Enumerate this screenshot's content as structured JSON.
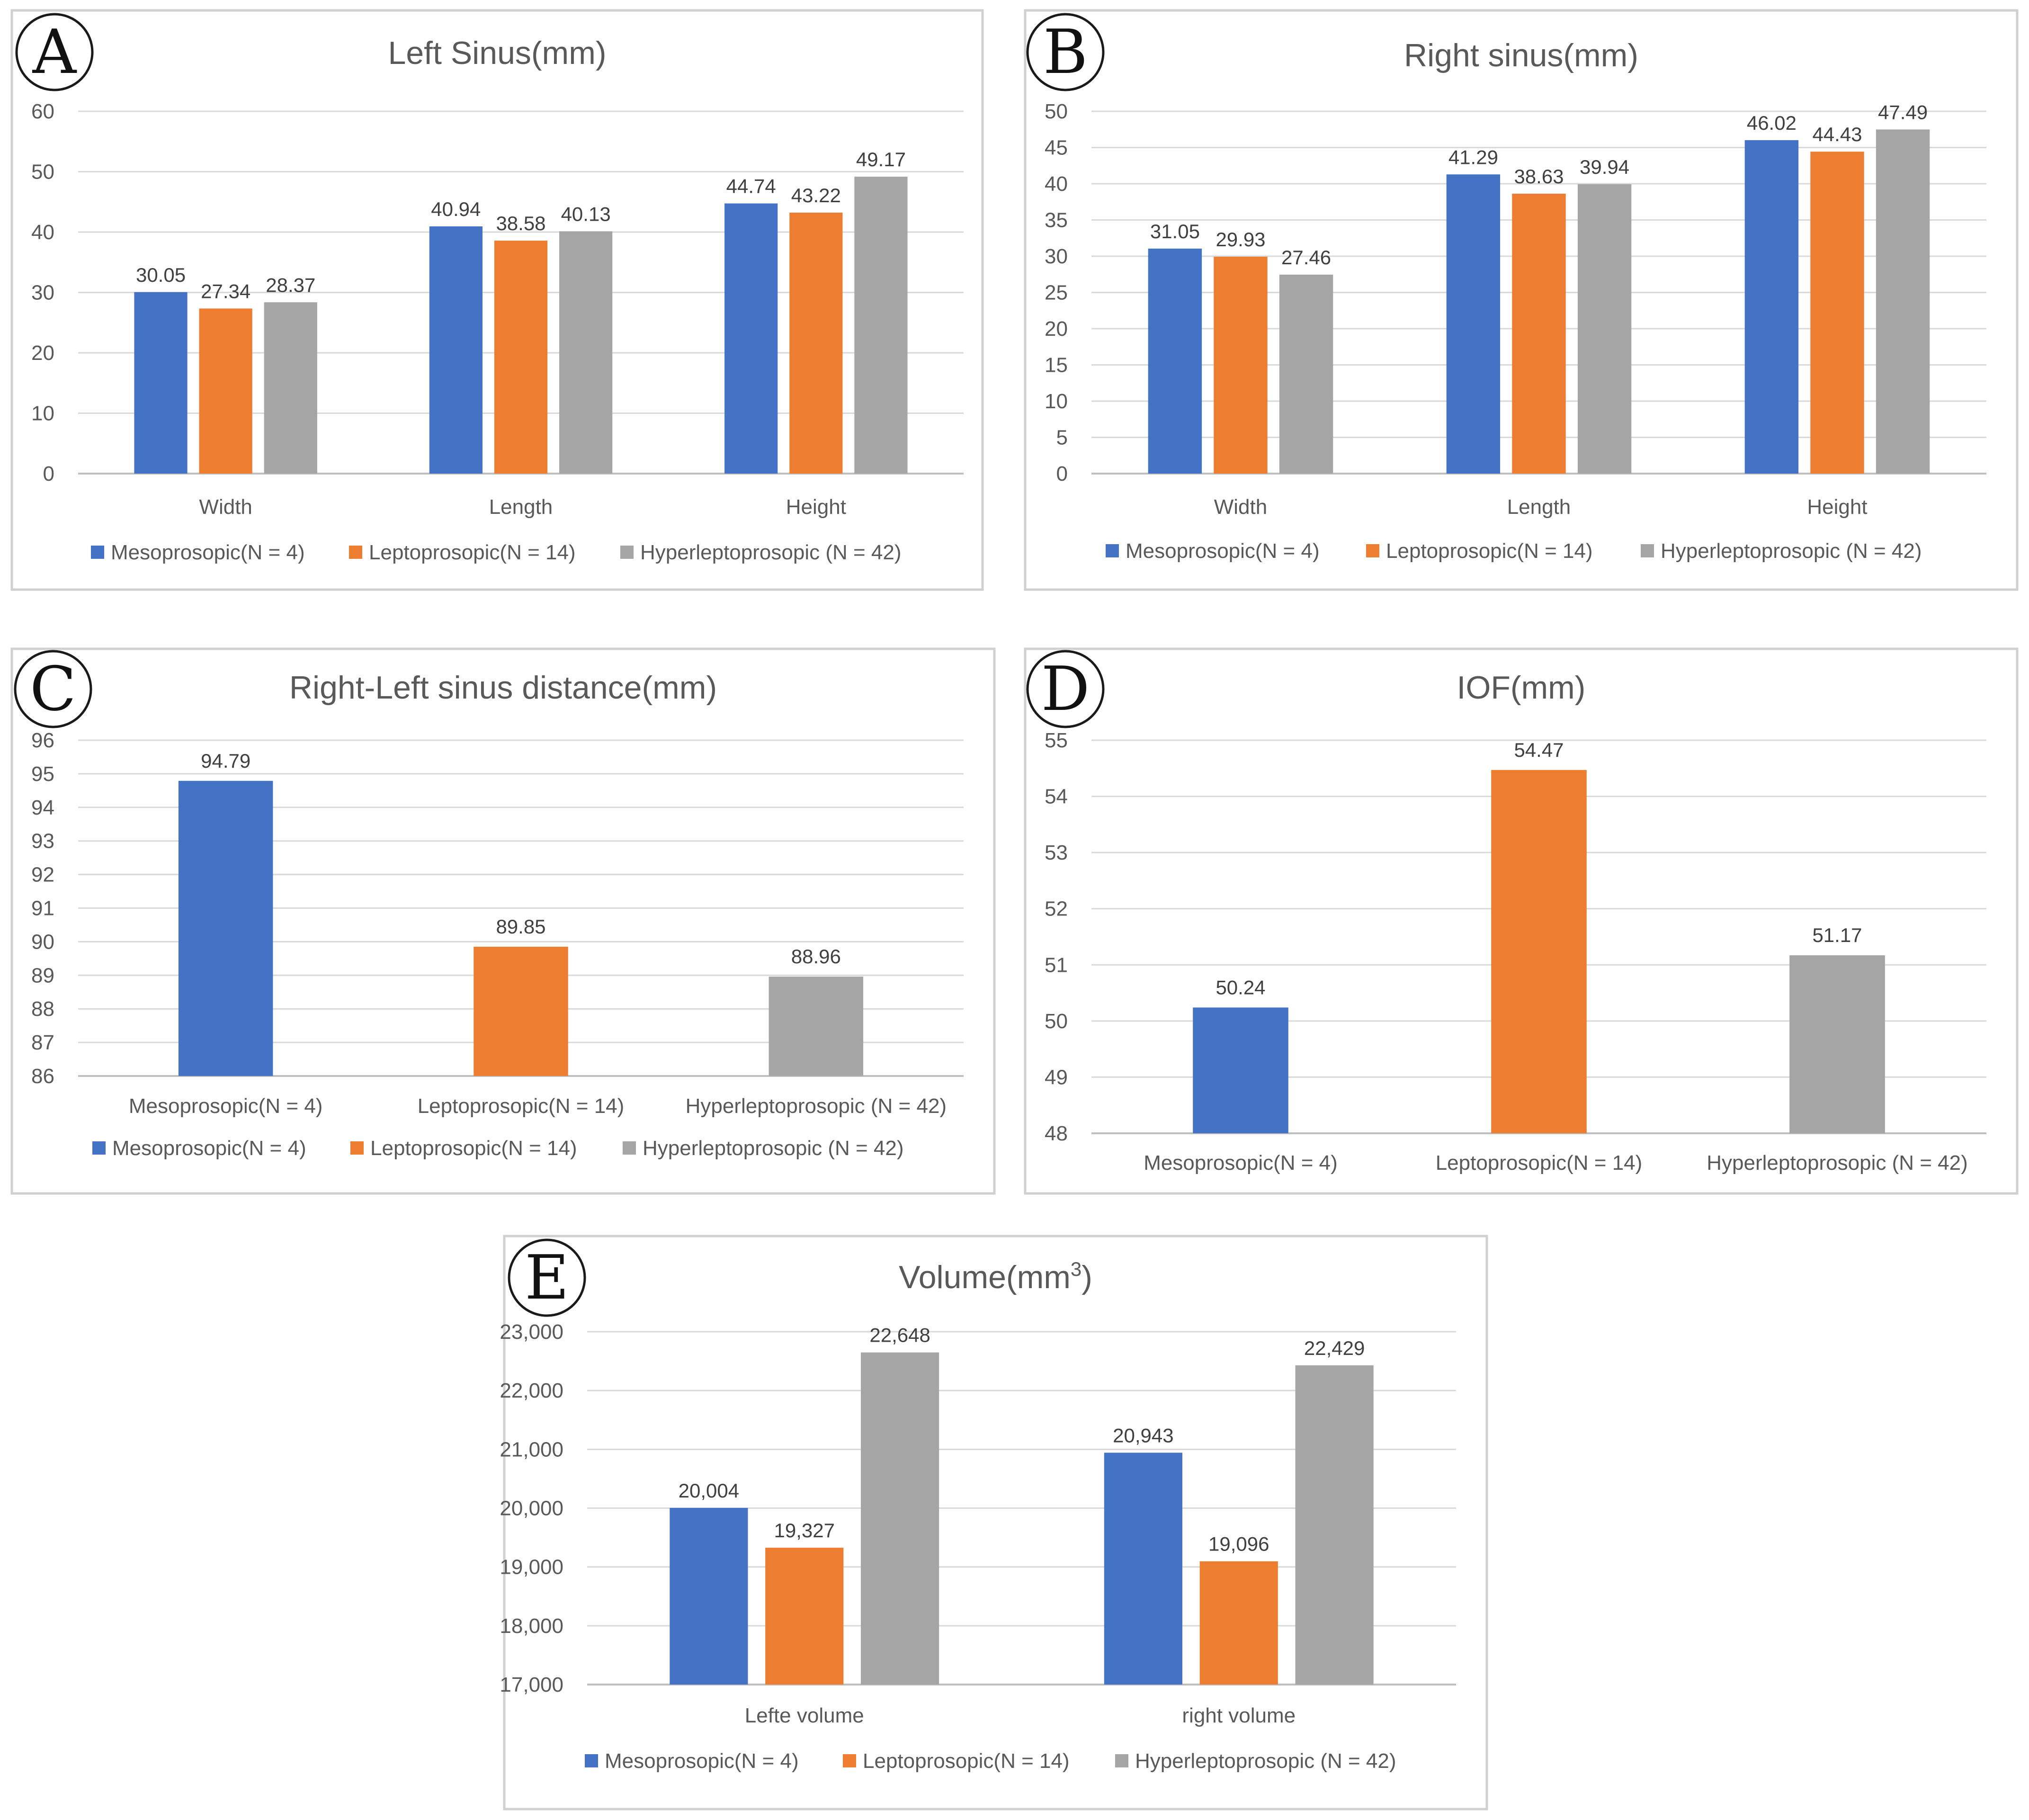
{
  "colors": {
    "series": [
      "#4472C4",
      "#ED7D31",
      "#A5A5A5"
    ]
  },
  "legend": [
    "Mesoprosopic(N = 4)",
    "Leptoprosopic(N = 14)",
    "Hyperleptoprosopic (N = 42)"
  ],
  "chart_data": [
    {
      "panel": "A",
      "type": "bar",
      "title": "Left Sinus(mm)",
      "categories": [
        "Width",
        "Length",
        "Height"
      ],
      "series": [
        {
          "name": "Mesoprosopic(N = 4)",
          "values": [
            30.05,
            40.94,
            44.74
          ],
          "labels": [
            "30.05",
            "40.94",
            "44.74"
          ]
        },
        {
          "name": "Leptoprosopic(N = 14)",
          "values": [
            27.34,
            38.58,
            43.22
          ],
          "labels": [
            "27.34",
            "38.58",
            "43.22"
          ]
        },
        {
          "name": "Hyperleptoprosopic (N = 42)",
          "values": [
            28.37,
            40.13,
            49.17
          ],
          "labels": [
            "28.37",
            "40.13",
            "49.17"
          ]
        }
      ],
      "ylim": [
        0,
        60
      ],
      "yticks": [
        "0",
        "10",
        "20",
        "30",
        "40",
        "50",
        "60"
      ],
      "xlabel": "",
      "ylabel": "",
      "legend_position": "bottom"
    },
    {
      "panel": "B",
      "type": "bar",
      "title": "Right sinus(mm)",
      "categories": [
        "Width",
        "Length",
        "Height"
      ],
      "series": [
        {
          "name": "Mesoprosopic(N = 4)",
          "values": [
            31.05,
            41.29,
            46.02
          ],
          "labels": [
            "31.05",
            "41.29",
            "46.02"
          ]
        },
        {
          "name": "Leptoprosopic(N = 14)",
          "values": [
            29.93,
            38.63,
            44.43
          ],
          "labels": [
            "29.93",
            "38.63",
            "44.43"
          ]
        },
        {
          "name": "Hyperleptoprosopic (N = 42)",
          "values": [
            27.46,
            39.94,
            47.49
          ],
          "labels": [
            "27.46",
            "39.94",
            "47.49"
          ]
        }
      ],
      "ylim": [
        0,
        50
      ],
      "yticks": [
        "0",
        "5",
        "10",
        "15",
        "20",
        "25",
        "30",
        "35",
        "40",
        "45",
        "50"
      ],
      "xlabel": "",
      "ylabel": "",
      "legend_position": "bottom"
    },
    {
      "panel": "C",
      "type": "bar",
      "title": "Right-Left sinus distance(mm)",
      "categories": [
        "Mesoprosopic(N = 4)",
        "Leptoprosopic(N = 14)",
        "Hyperleptoprosopic (N = 42)"
      ],
      "single_series_colored": true,
      "values": [
        94.79,
        89.85,
        88.96
      ],
      "labels": [
        "94.79",
        "89.85",
        "88.96"
      ],
      "ylim": [
        86,
        96
      ],
      "yticks": [
        "86",
        "87",
        "88",
        "89",
        "90",
        "91",
        "92",
        "93",
        "94",
        "95",
        "96"
      ],
      "xlabel": "",
      "ylabel": "",
      "legend_position": "bottom"
    },
    {
      "panel": "D",
      "type": "bar",
      "title": "IOF(mm)",
      "categories": [
        "Mesoprosopic(N = 4)",
        "Leptoprosopic(N = 14)",
        "Hyperleptoprosopic (N = 42)"
      ],
      "single_series_colored": true,
      "values": [
        50.24,
        54.47,
        51.17
      ],
      "labels": [
        "50.24",
        "54.47",
        "51.17"
      ],
      "ylim": [
        48,
        55
      ],
      "yticks": [
        "48",
        "49",
        "50",
        "51",
        "52",
        "53",
        "54",
        "55"
      ],
      "xlabel": "",
      "ylabel": "",
      "legend_position": "none"
    },
    {
      "panel": "E",
      "type": "bar",
      "title": "Volume(mm",
      "title_sup": "3",
      "title_end": ")",
      "categories": [
        "Lefte volume",
        "right volume"
      ],
      "series": [
        {
          "name": "Mesoprosopic(N = 4)",
          "values": [
            20004,
            20943
          ],
          "labels": [
            "20,004",
            "20,943"
          ]
        },
        {
          "name": "Leptoprosopic(N = 14)",
          "values": [
            19327,
            19096
          ],
          "labels": [
            "19,327",
            "19,096"
          ]
        },
        {
          "name": "Hyperleptoprosopic (N = 42)",
          "values": [
            22648,
            22429
          ],
          "labels": [
            "22,648",
            "22,429"
          ]
        }
      ],
      "ylim": [
        17000,
        23000
      ],
      "yticks": [
        "17,000",
        "18,000",
        "19,000",
        "20,000",
        "21,000",
        "22,000",
        "23,000"
      ],
      "xlabel": "",
      "ylabel": "",
      "legend_position": "bottom"
    }
  ]
}
